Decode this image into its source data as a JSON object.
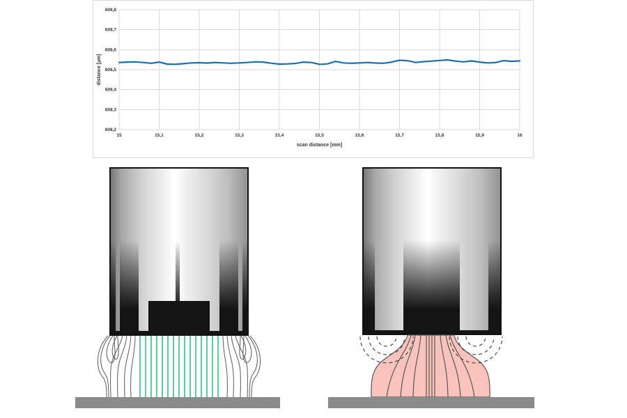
{
  "colors": {
    "line_blue": "#1b6db1",
    "grid_gray": "#d9d9d9",
    "axis_text": "#333333",
    "field_green": "#00a45e",
    "field_pink_fill": "#f7c3bb",
    "plate_gray": "#8b8b8b",
    "sensor_black": "#141414"
  },
  "chart_data": {
    "type": "line",
    "title": "",
    "xlabel": "scan distance [mm]",
    "ylabel": "distance [µm]",
    "xlim": [
      15,
      16
    ],
    "ylim": [
      608.2,
      608.8
    ],
    "grid": true,
    "legend": "none",
    "x_tick_values": [
      15,
      15.1,
      15.2,
      15.3,
      15.4,
      15.5,
      15.6,
      15.7,
      15.8,
      15.9,
      16
    ],
    "x_ticks": [
      "15",
      "15,1",
      "15,2",
      "15,3",
      "15,4",
      "15,5",
      "15,6",
      "15,7",
      "15,8",
      "15,9",
      "16"
    ],
    "y_tick_values": [
      608.2,
      608.3,
      608.4,
      608.5,
      608.6,
      608.7,
      608.8
    ],
    "y_ticks": [
      "608,2",
      "608,3",
      "608,4",
      "608,5",
      "608,6",
      "608,7",
      "608,8"
    ],
    "series": [
      {
        "name": "distance",
        "color": "#1b6db1",
        "x": [
          15,
          15.02,
          15.04,
          15.06,
          15.08,
          15.1,
          15.12,
          15.14,
          15.16,
          15.18,
          15.2,
          15.22,
          15.24,
          15.26,
          15.28,
          15.3,
          15.32,
          15.34,
          15.36,
          15.38,
          15.4,
          15.42,
          15.44,
          15.46,
          15.48,
          15.5,
          15.52,
          15.54,
          15.56,
          15.58,
          15.6,
          15.62,
          15.64,
          15.66,
          15.68,
          15.7,
          15.72,
          15.74,
          15.76,
          15.78,
          15.8,
          15.82,
          15.84,
          15.86,
          15.88,
          15.9,
          15.92,
          15.94,
          15.96,
          15.98,
          16
        ],
        "y": [
          608.536,
          608.538,
          608.539,
          608.536,
          608.532,
          608.538,
          608.528,
          608.527,
          608.53,
          608.534,
          608.535,
          608.533,
          608.536,
          608.534,
          608.532,
          608.534,
          608.536,
          608.539,
          608.538,
          608.532,
          608.528,
          608.529,
          608.531,
          608.538,
          608.536,
          608.527,
          608.529,
          608.541,
          608.534,
          608.532,
          608.534,
          608.536,
          608.533,
          608.532,
          608.538,
          608.547,
          608.545,
          608.536,
          608.54,
          608.543,
          608.546,
          608.549,
          608.543,
          608.539,
          608.544,
          608.538,
          608.534,
          608.536,
          608.545,
          608.542,
          608.544
        ]
      }
    ]
  }
}
